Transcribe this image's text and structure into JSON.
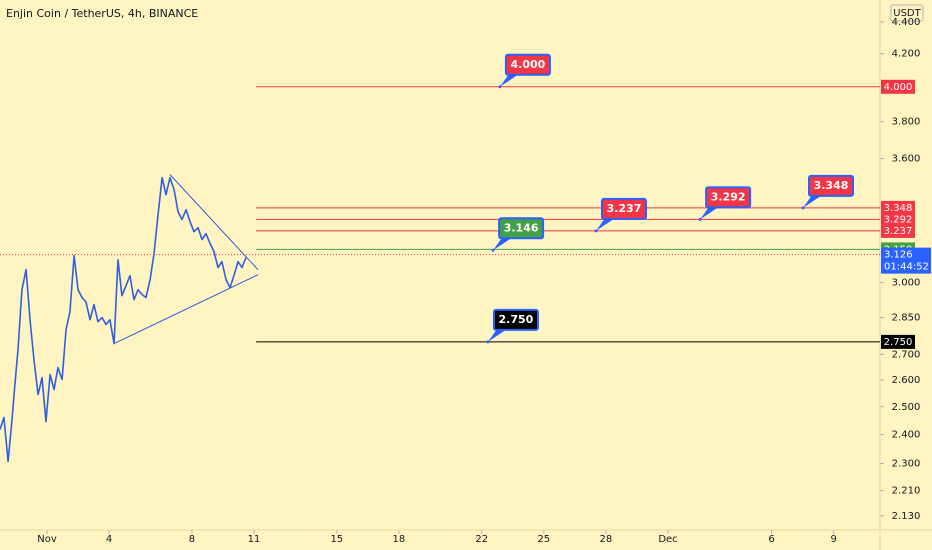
{
  "chart_data": {
    "type": "line",
    "title": "Enjin Coin / TetherUS, 4h, BINANCE",
    "currency": "USDT",
    "log_scale": true,
    "color": "#2e5fe0",
    "x": [
      -1.27,
      -1.08,
      -0.88,
      -0.69,
      -0.55,
      -0.4,
      -0.21,
      -0.01,
      0.18,
      0.37,
      0.57,
      0.76,
      0.95,
      1.15,
      1.34,
      1.53,
      1.73,
      1.92,
      2.11,
      2.31,
      2.5,
      2.69,
      2.88,
      3.08,
      3.27,
      3.46,
      3.66,
      3.85,
      4.04,
      4.24,
      4.43,
      4.62,
      4.82,
      5.01,
      5.2,
      5.4,
      5.59,
      5.78,
      5.98,
      6.17,
      6.36,
      6.56,
      6.75,
      6.94,
      7.14,
      7.33,
      7.52,
      7.72,
      7.91,
      8.1,
      8.3,
      8.49,
      8.68,
      8.88,
      9.07,
      9.26,
      9.45,
      9.65,
      9.84,
      10.03,
      10.23,
      10.42,
      10.61
    ],
    "values": [
      2.418,
      2.461,
      2.307,
      2.453,
      2.583,
      2.719,
      2.969,
      3.058,
      2.841,
      2.679,
      2.545,
      2.609,
      2.446,
      2.621,
      2.564,
      2.648,
      2.602,
      2.8,
      2.875,
      3.121,
      2.969,
      2.935,
      2.917,
      2.841,
      2.905,
      2.833,
      2.85,
      2.821,
      2.841,
      2.743,
      3.103,
      2.943,
      2.987,
      3.031,
      2.926,
      2.969,
      2.948,
      2.935,
      3.013,
      3.13,
      3.31,
      3.5,
      3.414,
      3.5,
      3.439,
      3.33,
      3.291,
      3.339,
      3.281,
      3.233,
      3.252,
      3.196,
      3.224,
      3.177,
      3.14,
      3.067,
      3.094,
      3.013,
      2.978,
      3.031,
      3.094,
      3.067,
      3.112
    ],
    "xlim": [
      -1.27,
      41.24
    ],
    "xticks": [
      {
        "value": 1,
        "label": "Nov"
      },
      4,
      8,
      11,
      15,
      18,
      22,
      25,
      28,
      {
        "value": 31,
        "label": "Dec"
      },
      {
        "value": 36,
        "label": "6"
      },
      {
        "value": 39,
        "label": "9"
      }
    ],
    "ylim": [
      2.086,
      4.544
    ],
    "yticks": [
      {
        "value": 4.4,
        "label": "4.400"
      },
      {
        "value": 4.2,
        "label": "4.200"
      },
      {
        "value": 3.8,
        "label": "3.800"
      },
      {
        "value": 3.6,
        "label": "3.600"
      },
      {
        "value": 3,
        "label": "3.000"
      },
      {
        "value": 2.85,
        "label": "2.850"
      },
      {
        "value": 2.7,
        "label": "2.700"
      },
      {
        "value": 2.6,
        "label": "2.600"
      },
      {
        "value": 2.5,
        "label": "2.500"
      },
      {
        "value": 2.4,
        "label": "2.400"
      },
      {
        "value": 2.3,
        "label": "2.300"
      },
      {
        "value": 2.21,
        "label": "2.210"
      },
      {
        "value": 2.13,
        "label": "2.130"
      }
    ],
    "levels_from": 11.1,
    "levels": [
      {
        "value": 4,
        "label": "4.000",
        "color": "#f23645"
      },
      {
        "value": 3.348,
        "label": "3.348",
        "color": "#f23645"
      },
      {
        "value": 3.292,
        "label": "3.292",
        "color": "#f23645"
      },
      {
        "value": 3.237,
        "label": "3.237",
        "color": "#f23645"
      },
      {
        "value": 3.15,
        "label": "3.150",
        "color": "#43a047"
      },
      {
        "value": 2.75,
        "label": "2.750",
        "color": "#000000"
      }
    ],
    "callouts": [
      {
        "x": 22.88,
        "value": 4,
        "label": "4.000",
        "color": "#f23645"
      },
      {
        "x": 22.55,
        "value": 3.146,
        "label": "3.146",
        "color": "#43a047"
      },
      {
        "x": 27.52,
        "value": 3.237,
        "label": "3.237",
        "color": "#f23645"
      },
      {
        "x": 32.55,
        "value": 3.292,
        "label": "3.292",
        "color": "#f23645"
      },
      {
        "x": 37.52,
        "value": 3.348,
        "label": "3.348",
        "color": "#f23645"
      },
      {
        "x": 22.3,
        "value": 2.75,
        "label": "2.750",
        "color": "#000000"
      }
    ],
    "trendlines": [
      {
        "x": [
          6.94,
          11.19
        ],
        "values": [
          3.516,
          3.058
        ]
      },
      {
        "x": [
          4.24,
          11.19
        ],
        "values": [
          2.743,
          3.035
        ]
      }
    ],
    "current_price": {
      "value": 3.126,
      "label": "3.126",
      "countdown": "01:44:52",
      "color": "#2962ff"
    }
  }
}
